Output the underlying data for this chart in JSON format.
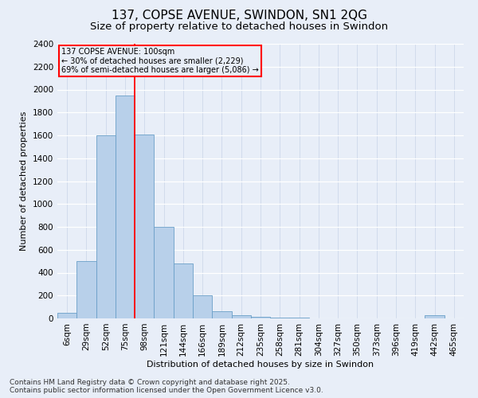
{
  "title": "137, COPSE AVENUE, SWINDON, SN1 2QG",
  "subtitle": "Size of property relative to detached houses in Swindon",
  "xlabel": "Distribution of detached houses by size in Swindon",
  "ylabel": "Number of detached properties",
  "categories": [
    "6sqm",
    "29sqm",
    "52sqm",
    "75sqm",
    "98sqm",
    "121sqm",
    "144sqm",
    "166sqm",
    "189sqm",
    "212sqm",
    "235sqm",
    "258sqm",
    "281sqm",
    "304sqm",
    "327sqm",
    "350sqm",
    "373sqm",
    "396sqm",
    "419sqm",
    "442sqm",
    "465sqm"
  ],
  "values": [
    50,
    500,
    1600,
    1950,
    1610,
    800,
    480,
    200,
    65,
    25,
    15,
    10,
    5,
    0,
    0,
    0,
    0,
    0,
    0,
    25,
    0
  ],
  "bar_color": "#b8d0ea",
  "bar_edge_color": "#6a9fc8",
  "vline_x_index": 4,
  "vline_color": "red",
  "annotation_text": "137 COPSE AVENUE: 100sqm\n← 30% of detached houses are smaller (2,229)\n69% of semi-detached houses are larger (5,086) →",
  "annotation_box_color": "red",
  "ylim": [
    0,
    2400
  ],
  "yticks": [
    0,
    200,
    400,
    600,
    800,
    1000,
    1200,
    1400,
    1600,
    1800,
    2000,
    2200,
    2400
  ],
  "background_color": "#e8eef8",
  "grid_color": "#d0d8e8",
  "footer_text": "Contains HM Land Registry data © Crown copyright and database right 2025.\nContains public sector information licensed under the Open Government Licence v3.0.",
  "title_fontsize": 11,
  "subtitle_fontsize": 9.5,
  "axis_label_fontsize": 8,
  "tick_fontsize": 7.5,
  "footer_fontsize": 6.5
}
